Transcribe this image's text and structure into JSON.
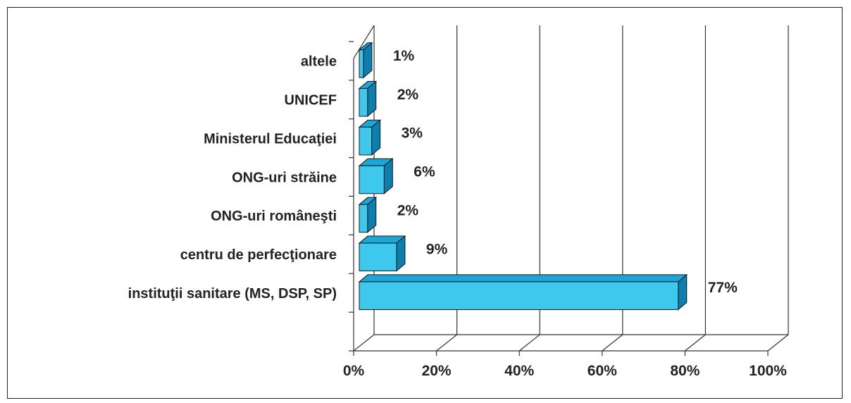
{
  "chart_data": {
    "type": "bar",
    "orientation": "horizontal",
    "three_d": true,
    "categories": [
      "instituţii sanitare (MS, DSP, SP)",
      "centru de perfecţionare",
      "ONG-uri româneşti",
      "ONG-uri străine",
      "Ministerul Educaţiei",
      "UNICEF",
      "altele"
    ],
    "values": [
      77,
      9,
      2,
      6,
      3,
      2,
      1
    ],
    "value_labels": [
      "77%",
      "9%",
      "2%",
      "6%",
      "3%",
      "2%",
      "1%"
    ],
    "xlim": [
      0,
      100
    ],
    "x_ticks": [
      "0%",
      "20%",
      "40%",
      "60%",
      "80%",
      "100%"
    ],
    "grid": "vertical",
    "legend": "none",
    "colors": {
      "bar_front": "#3fc8ee",
      "bar_top": "#1aa6d8",
      "bar_side": "#0d7fae",
      "outline": "#1a1a1a"
    }
  }
}
